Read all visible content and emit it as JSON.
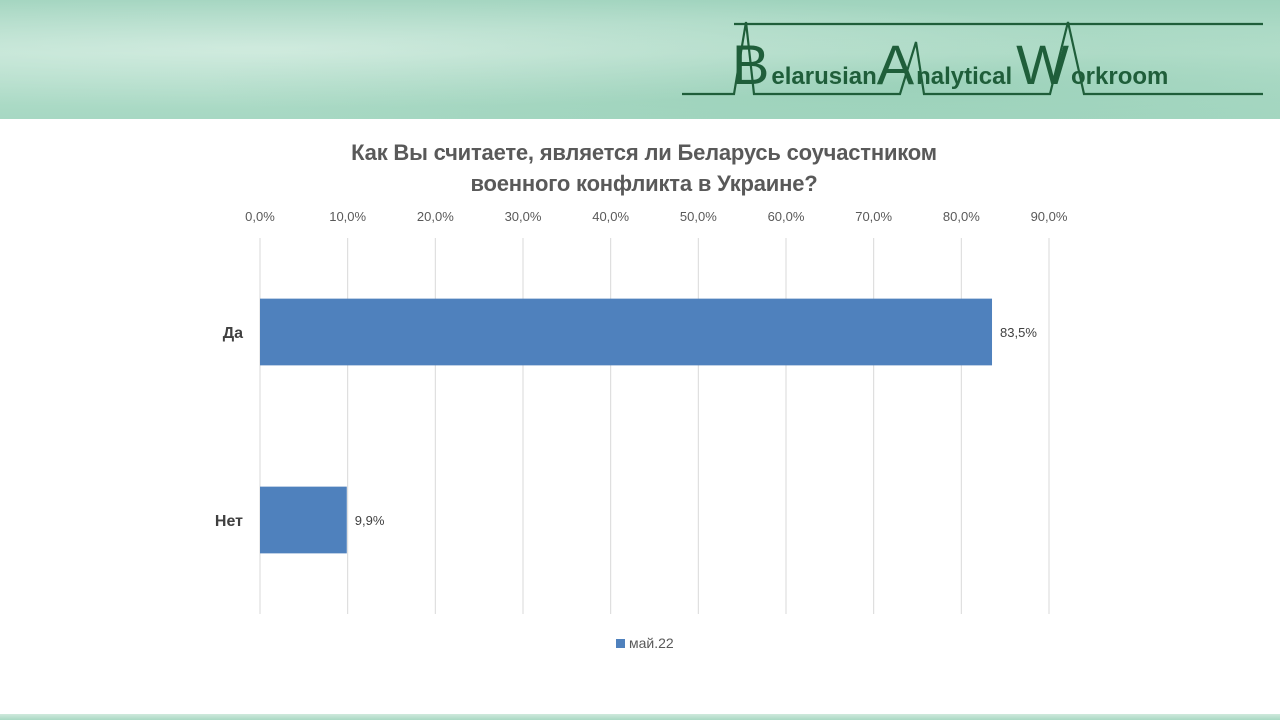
{
  "header": {
    "logo_text": "Belarusian Analytical Workroom",
    "logo_parts": [
      "B",
      "elarusian",
      "A",
      "nalytical",
      "W",
      "orkroom"
    ],
    "accent_color": "#1f5e3a"
  },
  "chart_data": {
    "type": "bar",
    "orientation": "horizontal",
    "title_lines": [
      "Как Вы считаете, является ли Беларусь соучастником",
      "военного конфликта в Украине?"
    ],
    "categories": [
      "Да",
      "Нет"
    ],
    "series": [
      {
        "name": "май.22",
        "values": [
          83.5,
          9.9
        ],
        "color": "#4f81bd"
      }
    ],
    "data_labels": [
      "83,5%",
      "9,9%"
    ],
    "xlim": [
      0,
      90
    ],
    "x_ticks": [
      0,
      10,
      20,
      30,
      40,
      50,
      60,
      70,
      80,
      90
    ],
    "x_tick_labels": [
      "0,0%",
      "10,0%",
      "20,0%",
      "30,0%",
      "40,0%",
      "50,0%",
      "60,0%",
      "70,0%",
      "80,0%",
      "90,0%"
    ],
    "x_axis_position": "top",
    "grid": true,
    "legend_position": "bottom"
  }
}
